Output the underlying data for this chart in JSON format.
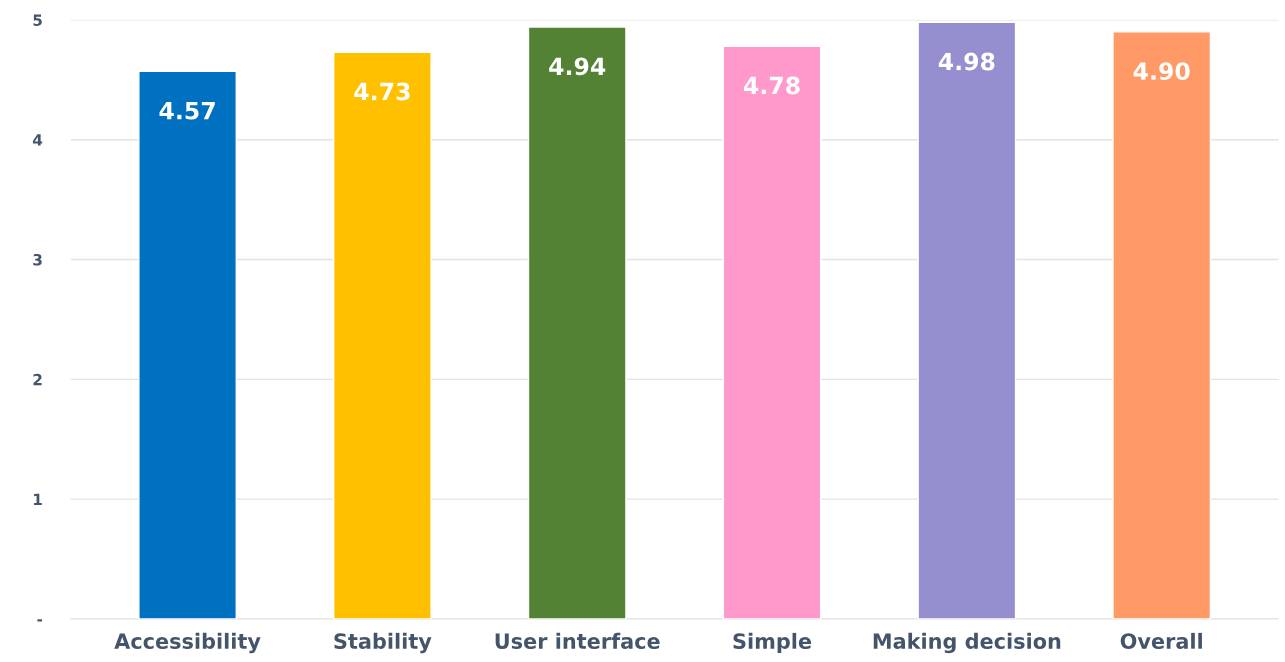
{
  "chart_data": {
    "type": "bar",
    "categories": [
      "Accessibility",
      "Stability",
      "User interface",
      "Simple",
      "Making decision",
      "Overall"
    ],
    "values": [
      4.57,
      4.73,
      4.94,
      4.78,
      4.98,
      4.9
    ],
    "colors": [
      "#0070c0",
      "#ffc000",
      "#548235",
      "#ff99cc",
      "#958fd0",
      "#ff9966"
    ],
    "value_labels": [
      "4.57",
      "4.73",
      "4.94",
      "4.78",
      "4.98",
      "4.90"
    ],
    "ylim": [
      0,
      5
    ],
    "yticks": [
      {
        "value": 0,
        "label": "-"
      },
      1,
      2,
      3,
      4,
      5
    ],
    "grid": "y"
  }
}
